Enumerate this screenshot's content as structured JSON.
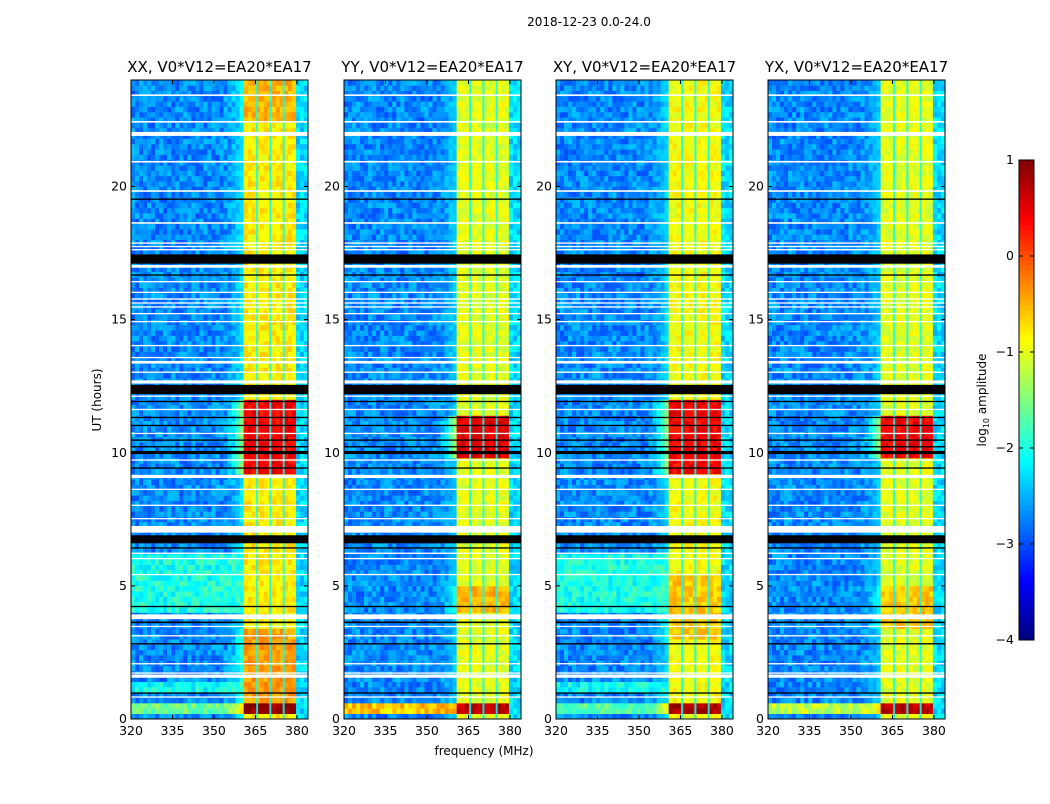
{
  "chart_data": {
    "type": "heatmap",
    "title": "2018-12-23 0.0-24.0",
    "xlabel": "frequency (MHz)",
    "ylabel": "UT (hours)",
    "xlim": [
      320,
      384
    ],
    "ylim": [
      0,
      24
    ],
    "xticks": [
      "320",
      "335",
      "350",
      "365",
      "380"
    ],
    "xtick_values": [
      320,
      335,
      350,
      365,
      380
    ],
    "yticks": [
      "0",
      "5",
      "10",
      "15",
      "20"
    ],
    "ytick_values": [
      0,
      5,
      10,
      15,
      20
    ],
    "colorbar": {
      "label": "log10 amplitude",
      "label_main": "log",
      "label_sub": "10",
      "label_rest": " amplitude",
      "range": [
        -4,
        1
      ],
      "ticks": [
        "1",
        "0",
        "−1",
        "−2",
        "−3",
        "−4"
      ],
      "tick_values": [
        1,
        0,
        -1,
        -2,
        -3,
        -4
      ],
      "colormap": "jet"
    },
    "band_MHz": [
      361,
      380
    ],
    "channel_gaps_MHz": [
      365.6,
      370.4,
      375.2
    ],
    "background_level": -2.7,
    "panels": [
      {
        "title": "XX, V0*V12=EA20*EA17",
        "band_levels": [
          {
            "t": [
              0.15,
              0.7
            ],
            "v": 0.9
          },
          {
            "t": [
              0.7,
              3.5
            ],
            "v": -0.4
          },
          {
            "t": [
              9.2,
              12.0
            ],
            "v": 0.4
          },
          {
            "t": [
              22.4,
              24
            ],
            "v": -0.5
          }
        ],
        "band_default": -0.8,
        "lowfreq_levels": [
          {
            "t": [
              0.25,
              0.65
            ],
            "v": -1.6
          },
          {
            "t": [
              4.0,
              6.2
            ],
            "v": -2.0
          },
          {
            "t": [
              1.0,
              1.5
            ],
            "v": -2.1
          },
          {
            "t": [
              10.6,
              10.7
            ],
            "v": -1.0
          }
        ]
      },
      {
        "title": "YY, V0*V12=EA20*EA17",
        "band_levels": [
          {
            "t": [
              0.15,
              0.7
            ],
            "v": 0.7
          },
          {
            "t": [
              9.9,
              11.4
            ],
            "v": 0.5
          },
          {
            "t": [
              4.0,
              5.0
            ],
            "v": -0.5
          }
        ],
        "band_default": -1.0,
        "lowfreq_levels": [
          {
            "t": [
              0.2,
              0.7
            ],
            "v": -0.6
          },
          {
            "t": [
              10.6,
              10.7
            ],
            "v": -1.2
          }
        ]
      },
      {
        "title": "XY, V0*V12=EA20*EA17",
        "band_levels": [
          {
            "t": [
              0.15,
              0.7
            ],
            "v": 0.8
          },
          {
            "t": [
              9.2,
              12.0
            ],
            "v": 0.4
          },
          {
            "t": [
              3.0,
              5.5
            ],
            "v": -0.6
          }
        ],
        "band_default": -0.9,
        "lowfreq_levels": [
          {
            "t": [
              0.25,
              0.65
            ],
            "v": -1.7
          },
          {
            "t": [
              4.0,
              6.2
            ],
            "v": -2.0
          },
          {
            "t": [
              1.0,
              1.5
            ],
            "v": -2.1
          }
        ]
      },
      {
        "title": "YX, V0*V12=EA20*EA17",
        "band_levels": [
          {
            "t": [
              0.15,
              0.7
            ],
            "v": 0.7
          },
          {
            "t": [
              9.9,
              11.4
            ],
            "v": 0.4
          },
          {
            "t": [
              3.5,
              5.0
            ],
            "v": -0.6
          }
        ],
        "band_default": -1.0,
        "lowfreq_levels": [
          {
            "t": [
              0.2,
              0.7
            ],
            "v": -1.2
          },
          {
            "t": [
              10.6,
              10.7
            ],
            "v": -1.0
          }
        ]
      }
    ],
    "flagged_rows": [
      {
        "t": 23.4,
        "d": 0.06,
        "c": "white"
      },
      {
        "t": 22.4,
        "d": 0.06,
        "c": "white"
      },
      {
        "t": 21.9,
        "d": 0.15,
        "c": "white"
      },
      {
        "t": 20.9,
        "d": 0.06,
        "c": "white"
      },
      {
        "t": 19.8,
        "d": 0.06,
        "c": "white"
      },
      {
        "t": 19.5,
        "d": 0.05,
        "c": "black"
      },
      {
        "t": 18.6,
        "d": 0.06,
        "c": "white"
      },
      {
        "t": 17.85,
        "d": 0.05,
        "c": "white"
      },
      {
        "t": 17.72,
        "d": 0.05,
        "c": "white"
      },
      {
        "t": 17.6,
        "d": 0.05,
        "c": "white"
      },
      {
        "t": 17.1,
        "d": 0.35,
        "c": "black"
      },
      {
        "t": 16.95,
        "d": 0.1,
        "c": "white"
      },
      {
        "t": 16.65,
        "d": 0.05,
        "c": "black"
      },
      {
        "t": 16.4,
        "d": 0.05,
        "c": "white"
      },
      {
        "t": 16.0,
        "d": 0.05,
        "c": "white"
      },
      {
        "t": 15.75,
        "d": 0.05,
        "c": "white"
      },
      {
        "t": 15.6,
        "d": 0.05,
        "c": "white"
      },
      {
        "t": 15.45,
        "d": 0.05,
        "c": "white"
      },
      {
        "t": 15.2,
        "d": 0.05,
        "c": "white"
      },
      {
        "t": 14.9,
        "d": 0.05,
        "c": "white"
      },
      {
        "t": 14.0,
        "d": 0.05,
        "c": "white"
      },
      {
        "t": 13.55,
        "d": 0.05,
        "c": "white"
      },
      {
        "t": 13.35,
        "d": 0.1,
        "c": "white"
      },
      {
        "t": 13.0,
        "d": 0.05,
        "c": "white"
      },
      {
        "t": 12.6,
        "d": 0.12,
        "c": "white"
      },
      {
        "t": 12.2,
        "d": 0.35,
        "c": "black"
      },
      {
        "t": 12.1,
        "d": 0.05,
        "c": "white"
      },
      {
        "t": 11.9,
        "d": 0.05,
        "c": "black"
      },
      {
        "t": 11.6,
        "d": 0.05,
        "c": "white"
      },
      {
        "t": 11.3,
        "d": 0.05,
        "c": "black"
      },
      {
        "t": 11.0,
        "d": 0.05,
        "c": "black"
      },
      {
        "t": 10.7,
        "d": 0.05,
        "c": "white"
      },
      {
        "t": 10.45,
        "d": 0.05,
        "c": "black"
      },
      {
        "t": 10.2,
        "d": 0.05,
        "c": "black"
      },
      {
        "t": 9.95,
        "d": 0.12,
        "c": "black"
      },
      {
        "t": 9.7,
        "d": 0.05,
        "c": "white"
      },
      {
        "t": 9.4,
        "d": 0.05,
        "c": "black"
      },
      {
        "t": 9.05,
        "d": 0.12,
        "c": "white"
      },
      {
        "t": 8.6,
        "d": 0.05,
        "c": "white"
      },
      {
        "t": 8.0,
        "d": 0.05,
        "c": "white"
      },
      {
        "t": 7.5,
        "d": 0.05,
        "c": "white"
      },
      {
        "t": 7.0,
        "d": 0.25,
        "c": "white"
      },
      {
        "t": 6.6,
        "d": 0.3,
        "c": "black"
      },
      {
        "t": 6.4,
        "d": 0.05,
        "c": "black"
      },
      {
        "t": 6.2,
        "d": 0.05,
        "c": "white"
      },
      {
        "t": 6.0,
        "d": 0.05,
        "c": "white"
      },
      {
        "t": 5.4,
        "d": 0.05,
        "c": "white"
      },
      {
        "t": 4.2,
        "d": 0.05,
        "c": "black"
      },
      {
        "t": 3.75,
        "d": 0.18,
        "c": "white"
      },
      {
        "t": 3.6,
        "d": 0.06,
        "c": "black"
      },
      {
        "t": 3.45,
        "d": 0.05,
        "c": "white"
      },
      {
        "t": 3.1,
        "d": 0.05,
        "c": "white"
      },
      {
        "t": 2.8,
        "d": 0.05,
        "c": "black"
      },
      {
        "t": 2.05,
        "d": 0.05,
        "c": "white"
      },
      {
        "t": 1.7,
        "d": 0.05,
        "c": "white"
      },
      {
        "t": 1.55,
        "d": 0.12,
        "c": "white"
      },
      {
        "t": 0.95,
        "d": 0.05,
        "c": "black"
      },
      {
        "t": 0.8,
        "d": 0.05,
        "c": "white"
      }
    ]
  }
}
